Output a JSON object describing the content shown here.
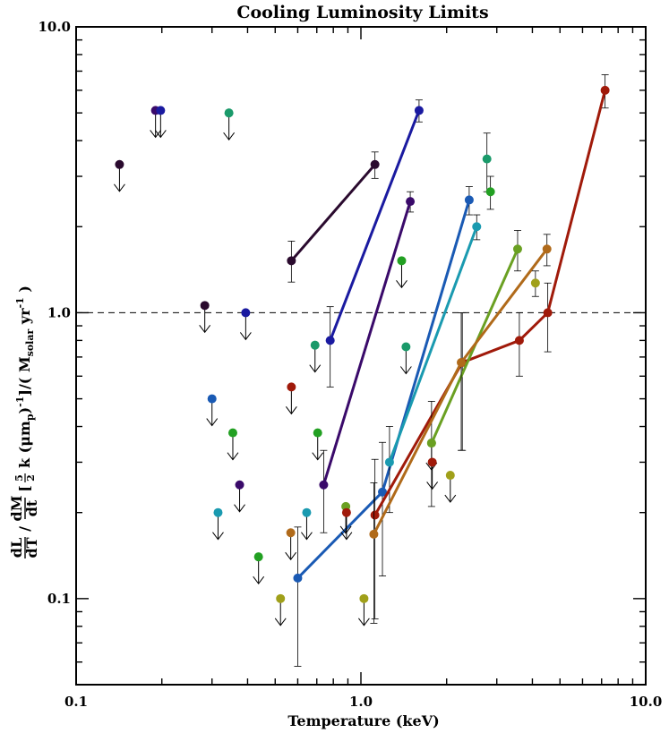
{
  "chart_data": {
    "type": "scatter",
    "title": "Cooling Luminosity Limits",
    "xlabel": "Temperature (keV)",
    "ylabel": {
      "frac1_num": "dL",
      "frac1_den": "dT",
      "frac2_num": "dM",
      "frac2_den": "dt",
      "frac3_num": "5",
      "frac3_den": "2",
      "middle": "k (μm",
      "middle_sub": "p",
      "middle_end": ")",
      "middle_sup": "-1",
      "units_open": "]/( M",
      "units_sub": "solar",
      "units_end": " yr",
      "units_sup": "-1",
      "units_close": " )",
      "slash": "/",
      "bracket": "["
    },
    "x_scale": "log",
    "y_scale": "log",
    "xlim": [
      0.1,
      10.0
    ],
    "ylim": [
      0.05,
      10.0
    ],
    "x_tick_labels": [
      {
        "value": 0.1,
        "label": "0.1"
      },
      {
        "value": 1.0,
        "label": "1.0"
      },
      {
        "value": 10.0,
        "label": "10.0"
      }
    ],
    "y_tick_labels": [
      {
        "value": 0.1,
        "label": "0.1"
      },
      {
        "value": 1.0,
        "label": "1.0"
      },
      {
        "value": 10.0,
        "label": "10.0"
      }
    ],
    "reference_line": {
      "y": 1.0,
      "style": "dashed"
    },
    "upper_limits": [
      {
        "x": 0.142,
        "y": 3.3,
        "color": "#2a0a2e"
      },
      {
        "x": 0.19,
        "y": 5.1,
        "color": "#3a0a6a"
      },
      {
        "x": 0.198,
        "y": 5.1,
        "color": "#1a1aa0"
      },
      {
        "x": 0.344,
        "y": 5.0,
        "color": "#1a9a6a"
      },
      {
        "x": 0.283,
        "y": 1.06,
        "color": "#2a0a2e"
      },
      {
        "x": 0.394,
        "y": 1.0,
        "color": "#1a1aa0"
      },
      {
        "x": 0.3,
        "y": 0.5,
        "color": "#1a5ab4"
      },
      {
        "x": 0.355,
        "y": 0.38,
        "color": "#22a022"
      },
      {
        "x": 0.375,
        "y": 0.25,
        "color": "#3a0a6a"
      },
      {
        "x": 0.315,
        "y": 0.2,
        "color": "#1a9ab0"
      },
      {
        "x": 0.57,
        "y": 0.55,
        "color": "#a01a0a"
      },
      {
        "x": 0.69,
        "y": 0.77,
        "color": "#1a9a6a"
      },
      {
        "x": 0.705,
        "y": 0.38,
        "color": "#22a022"
      },
      {
        "x": 0.645,
        "y": 0.2,
        "color": "#1a9ab0"
      },
      {
        "x": 0.885,
        "y": 0.21,
        "color": "#6aa022"
      },
      {
        "x": 0.89,
        "y": 0.2,
        "color": "#a01a0a"
      },
      {
        "x": 0.437,
        "y": 0.14,
        "color": "#22a022"
      },
      {
        "x": 0.567,
        "y": 0.17,
        "color": "#b06a1a"
      },
      {
        "x": 0.522,
        "y": 0.1,
        "color": "#a0a01a"
      },
      {
        "x": 1.025,
        "y": 0.1,
        "color": "#a0a01a"
      },
      {
        "x": 1.39,
        "y": 1.52,
        "color": "#22a022"
      },
      {
        "x": 1.44,
        "y": 0.76,
        "color": "#1a9a6a"
      },
      {
        "x": 1.77,
        "y": 0.35,
        "color": "#6aa022"
      },
      {
        "x": 1.78,
        "y": 0.3,
        "color": "#a01a0a"
      },
      {
        "x": 2.06,
        "y": 0.27,
        "color": "#a0a01a"
      }
    ],
    "series": [
      {
        "color": "#2a0a2e",
        "points": [
          {
            "x": 0.57,
            "y": 1.52,
            "err_lo": 1.28,
            "err_hi": 1.78
          },
          {
            "x": 1.12,
            "y": 3.3,
            "err_lo": 2.95,
            "err_hi": 3.65
          }
        ]
      },
      {
        "color": "#1a1aa0",
        "points": [
          {
            "x": 0.78,
            "y": 0.8,
            "err_lo": 0.55,
            "err_hi": 1.05
          },
          {
            "x": 1.6,
            "y": 5.1,
            "err_lo": 4.65,
            "err_hi": 5.55
          }
        ]
      },
      {
        "color": "#3a0a6a",
        "points": [
          {
            "x": 0.74,
            "y": 0.25,
            "err_lo": 0.17,
            "err_hi": 0.33
          },
          {
            "x": 1.49,
            "y": 2.45,
            "err_lo": 2.25,
            "err_hi": 2.65
          }
        ]
      },
      {
        "color": "#1a5ab4",
        "points": [
          {
            "x": 0.6,
            "y": 0.118,
            "err_lo": 0.058,
            "err_hi": 0.178
          },
          {
            "x": 1.19,
            "y": 0.236,
            "err_lo": 0.12,
            "err_hi": 0.352
          },
          {
            "x": 2.4,
            "y": 2.48,
            "err_lo": 2.2,
            "err_hi": 2.76
          }
        ]
      },
      {
        "color": "#1a9ab0",
        "points": [
          {
            "x": 1.26,
            "y": 0.3,
            "err_lo": 0.2,
            "err_hi": 0.4
          },
          {
            "x": 2.55,
            "y": 2.0,
            "err_lo": 1.8,
            "err_hi": 2.2
          }
        ]
      },
      {
        "color": "#1a9a6a",
        "points": [
          {
            "x": 2.77,
            "y": 3.45,
            "err_lo": 2.65,
            "err_hi": 4.25
          }
        ]
      },
      {
        "color": "#22a022",
        "points": [
          {
            "x": 2.85,
            "y": 2.65,
            "err_lo": 2.3,
            "err_hi": 3.0
          }
        ]
      },
      {
        "color": "#a01a0a",
        "points": [
          {
            "x": 1.12,
            "y": 0.196,
            "err_lo": 0.085,
            "err_hi": 0.307
          },
          {
            "x": 2.27,
            "y": 0.67,
            "err_lo": 0.33,
            "err_hi": 1.0
          },
          {
            "x": 3.6,
            "y": 0.8,
            "err_lo": 0.6,
            "err_hi": 1.0
          },
          {
            "x": 4.53,
            "y": 1.0,
            "err_lo": 0.73,
            "err_hi": 1.27
          },
          {
            "x": 7.2,
            "y": 6.0,
            "err_lo": 5.2,
            "err_hi": 6.8
          }
        ]
      },
      {
        "color": "#6aa022",
        "points": [
          {
            "x": 1.77,
            "y": 0.35,
            "err_lo": 0.21,
            "err_hi": 0.49
          },
          {
            "x": 3.55,
            "y": 1.67,
            "err_lo": 1.4,
            "err_hi": 1.94
          }
        ]
      },
      {
        "color": "#b06a1a",
        "points": [
          {
            "x": 1.11,
            "y": 0.168,
            "err_lo": 0.082,
            "err_hi": 0.254
          },
          {
            "x": 2.25,
            "y": 0.67,
            "err_lo": 0.33,
            "err_hi": 1.0
          },
          {
            "x": 4.5,
            "y": 1.67,
            "err_lo": 1.46,
            "err_hi": 1.88
          }
        ]
      },
      {
        "color": "#a0a01a",
        "points": [
          {
            "x": 4.1,
            "y": 1.27,
            "err_lo": 1.14,
            "err_hi": 1.4
          }
        ]
      }
    ]
  }
}
